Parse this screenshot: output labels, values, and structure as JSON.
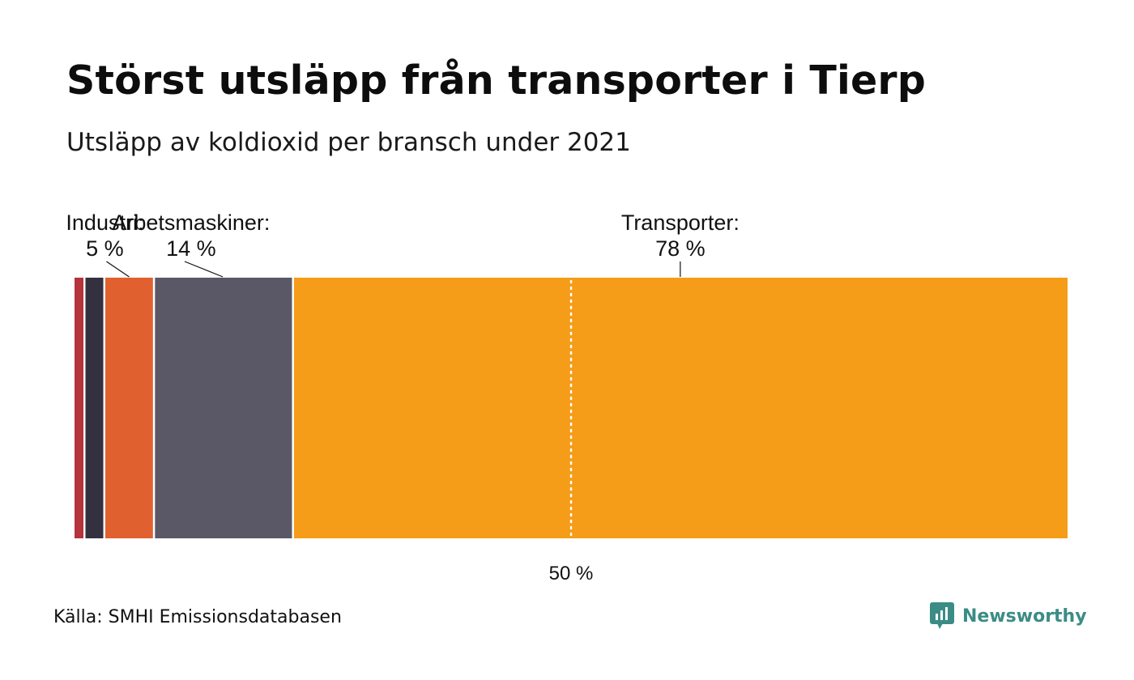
{
  "title": "Störst utsläpp från transporter i Tierp",
  "subtitle": "Utsläpp av koldioxid per bransch under 2021",
  "source": "Källa: SMHI Emissionsdatabasen",
  "brand": {
    "name": "Newsworthy",
    "color": "#3b8c85",
    "icon": "newsworthy-logo-icon"
  },
  "chart_data": {
    "type": "bar",
    "orientation": "horizontal-stacked-100",
    "xlim": [
      0,
      100
    ],
    "reference_line": {
      "value": 50,
      "label": "50 %"
    },
    "series": [
      {
        "name": "",
        "value": 1,
        "color": "#b5333a"
      },
      {
        "name": "",
        "value": 2,
        "color": "#33313f"
      },
      {
        "name": "Industri:",
        "value": 5,
        "value_label": "5 %",
        "color": "#e0602f"
      },
      {
        "name": "Arbetsmaskiner:",
        "value": 14,
        "value_label": "14 %",
        "color": "#5a5866"
      },
      {
        "name": "Transporter:",
        "value": 78,
        "value_label": "78 %",
        "color": "#f59c18"
      }
    ]
  }
}
